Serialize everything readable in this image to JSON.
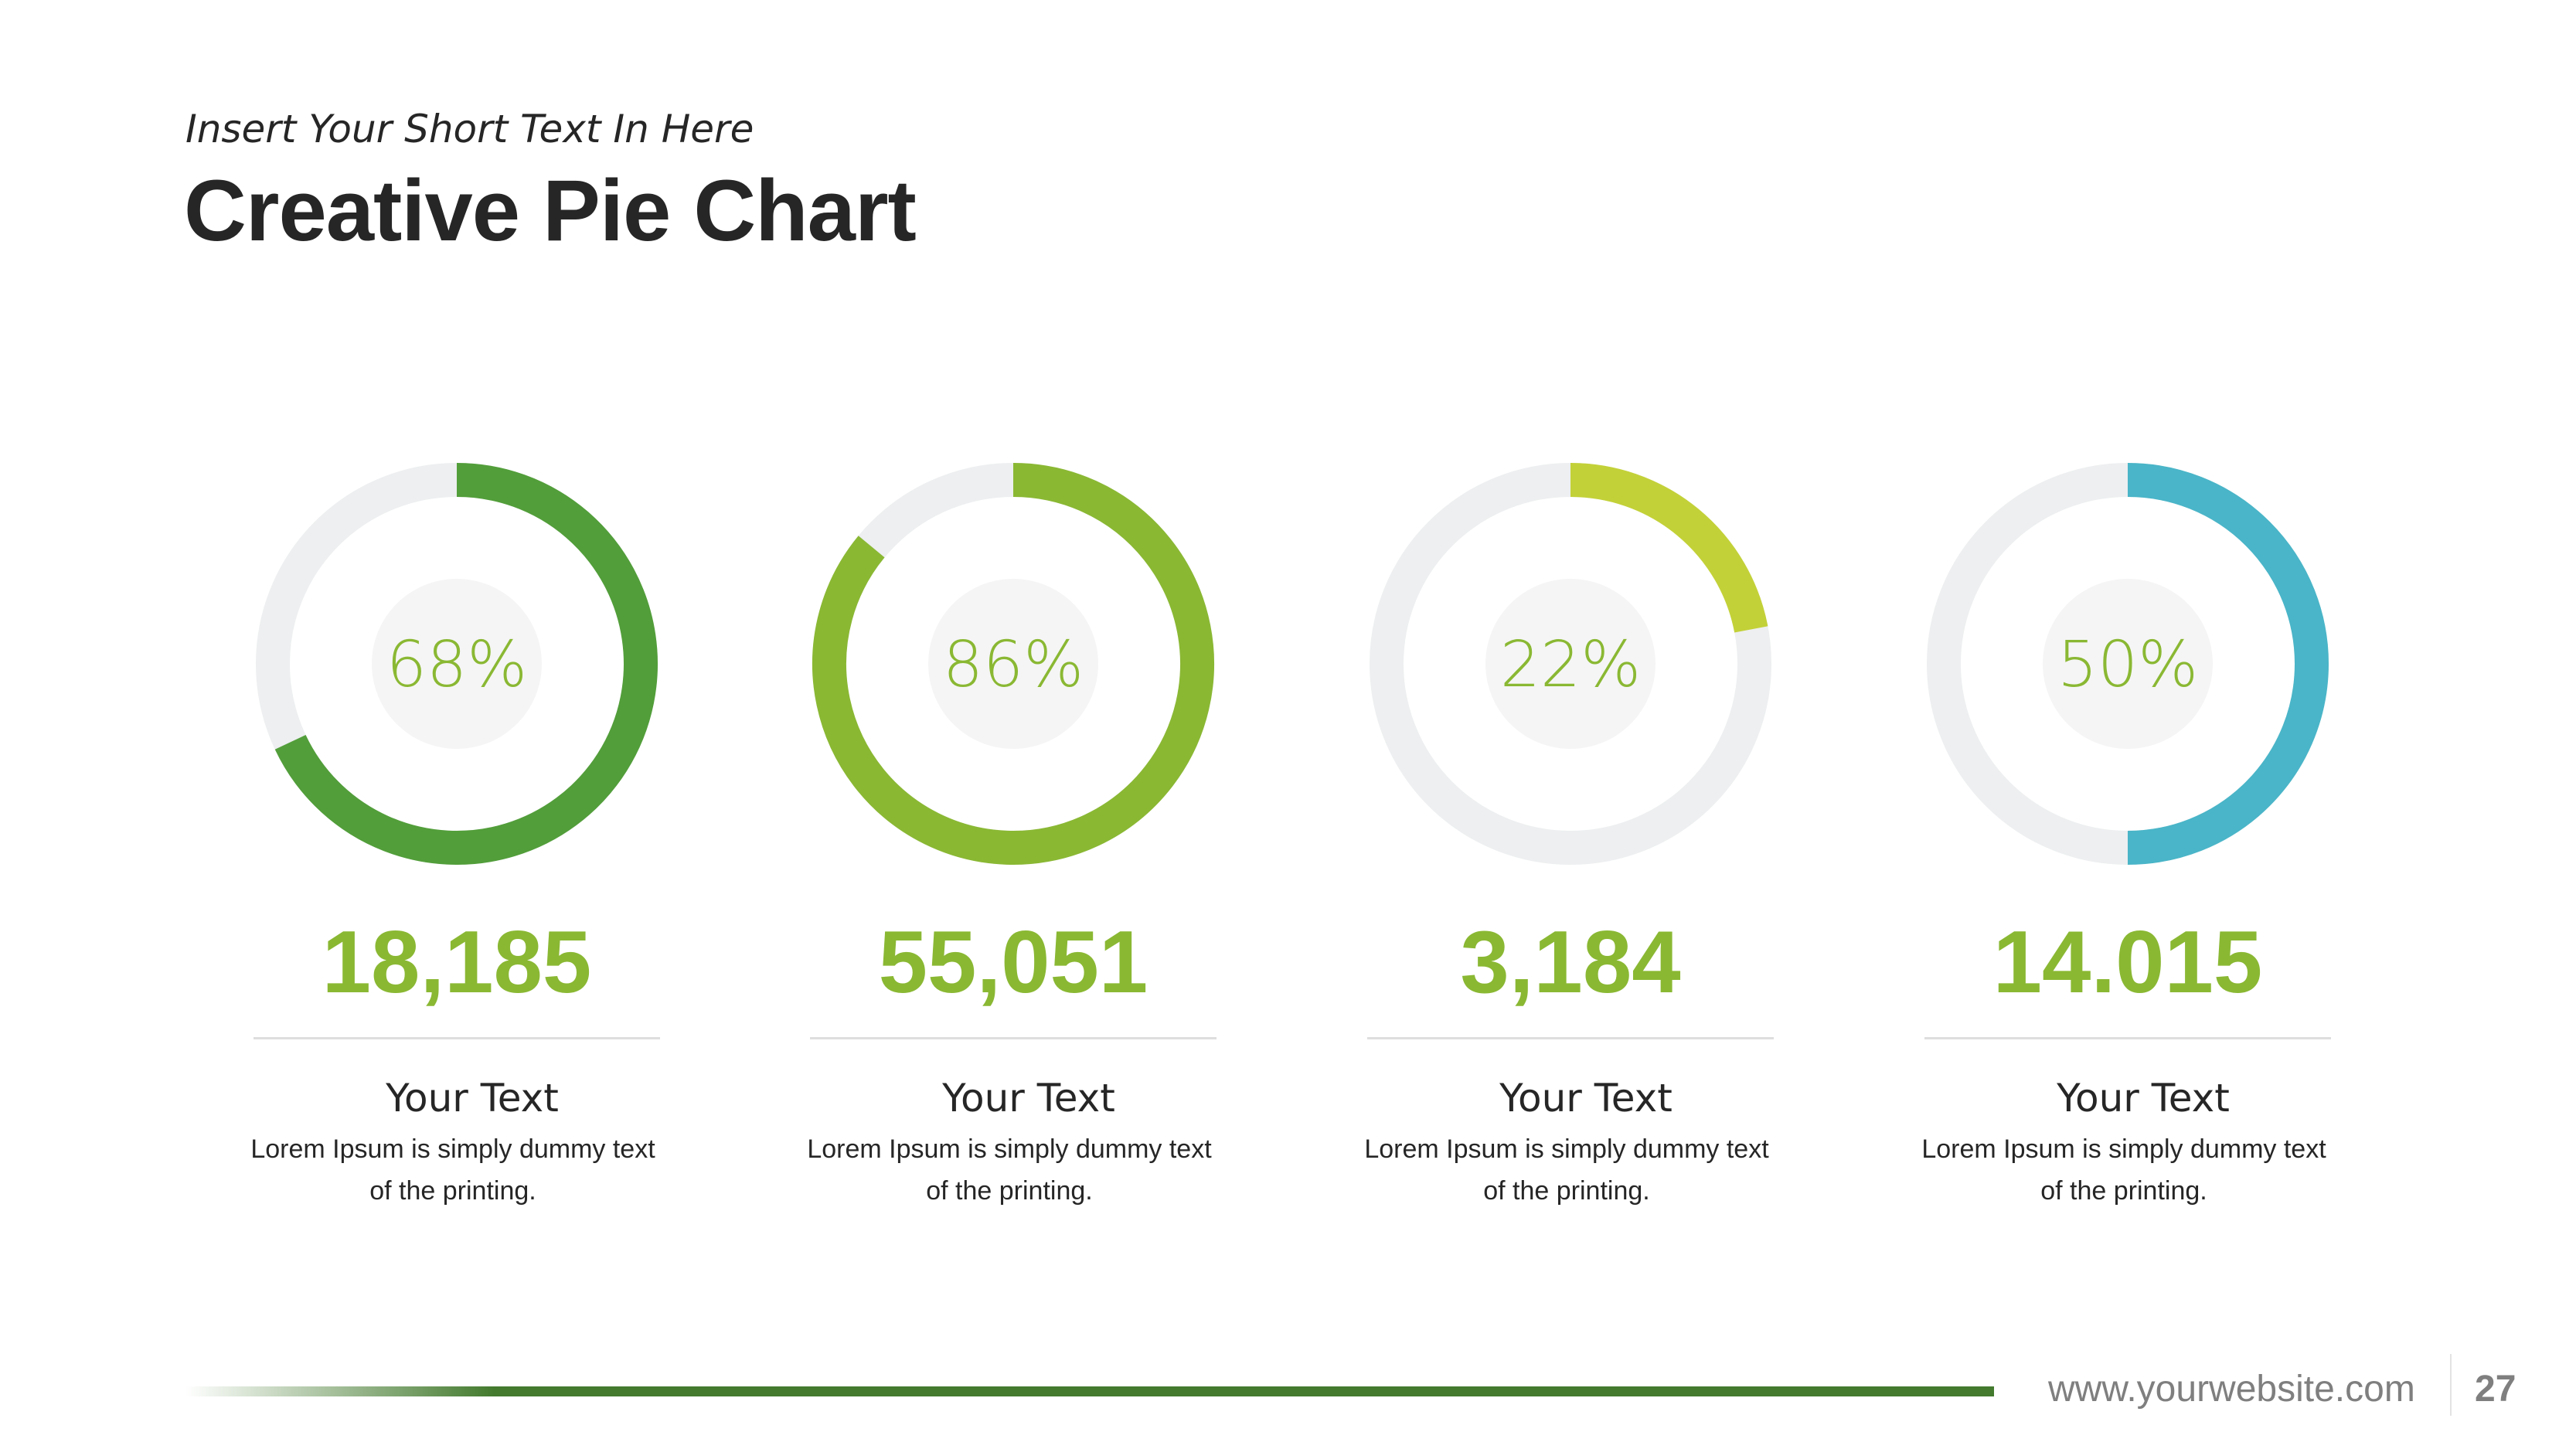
{
  "header": {
    "subtitle": "Insert Your Short Text In Here",
    "title": "Creative Pie Chart"
  },
  "chart_data": {
    "type": "pie",
    "title": "Creative Pie Chart",
    "track_color": "#edeff0",
    "series": [
      {
        "percent": 68,
        "label": "68%",
        "value": "18,185",
        "heading": "Your Text",
        "desc1": "Lorem Ipsum is simply dummy text",
        "desc2": "of the printing.",
        "color": "#529e3a"
      },
      {
        "percent": 86,
        "label": "86%",
        "value": "55,051",
        "heading": "Your Text",
        "desc1": "Lorem Ipsum is simply dummy text",
        "desc2": "of the printing.",
        "color": "#8ab833"
      },
      {
        "percent": 22,
        "label": "22%",
        "value": "3,184",
        "heading": "Your Text",
        "desc1": "Lorem Ipsum is simply dummy text",
        "desc2": "of the printing.",
        "color": "#c3d138"
      },
      {
        "percent": 50,
        "label": "50%",
        "value": "14.015",
        "heading": "Your Text",
        "desc1": "Lorem Ipsum is simply dummy text",
        "desc2": "of the printing.",
        "color": "#4ab5c8"
      }
    ]
  },
  "footer": {
    "website": "www.yourwebsite.com",
    "page": "27"
  }
}
